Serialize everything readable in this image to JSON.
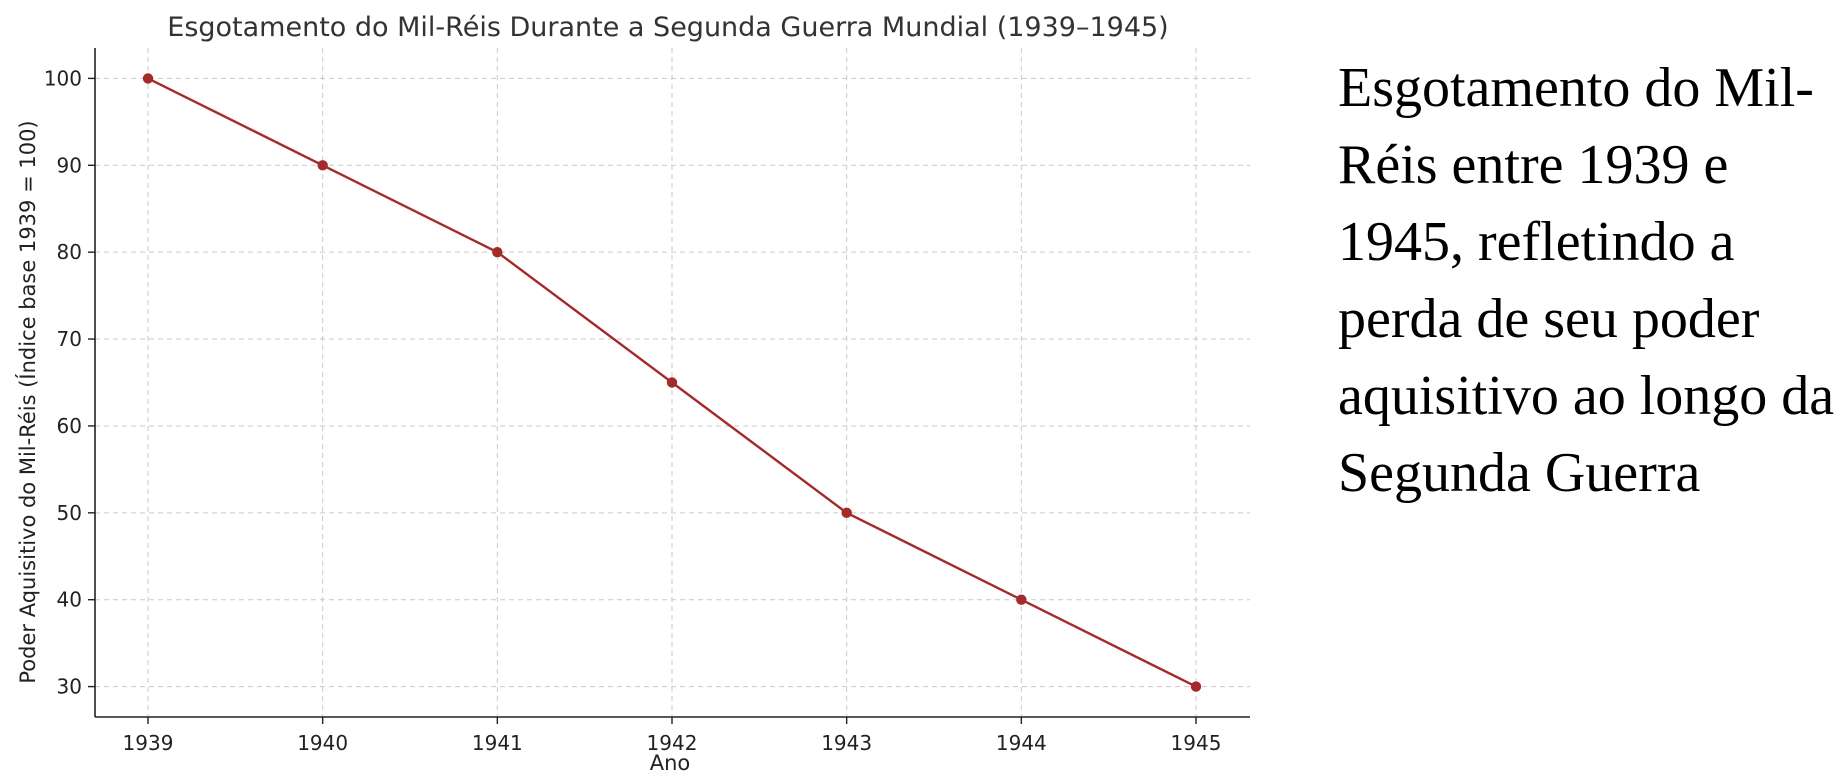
{
  "caption": "Esgotamento do Mil-Réis entre 1939 e 1945, refletindo a perda de seu poder aquisitivo ao longo da Segunda Guerra",
  "chart_data": {
    "type": "line",
    "title": "Esgotamento do Mil-Réis Durante a Segunda Guerra Mundial (1939–1945)",
    "xlabel": "Ano",
    "ylabel": "Poder Aquisitivo do Mil-Réis (Índice base 1939 = 100)",
    "x": [
      "1939",
      "1940",
      "1941",
      "1942",
      "1943",
      "1944",
      "1945"
    ],
    "series": [
      {
        "values": [
          100,
          90,
          80,
          65,
          50,
          40,
          30
        ],
        "color": "#a52a2a",
        "marker": "circle"
      }
    ],
    "ylim": [
      26.5,
      103.5
    ],
    "yticks": [
      30,
      40,
      50,
      60,
      70,
      80,
      90,
      100
    ],
    "grid": true,
    "legend": "none"
  }
}
